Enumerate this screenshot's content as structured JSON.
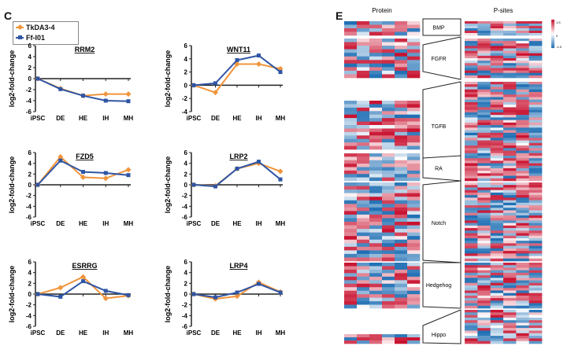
{
  "panels": {
    "c_label": "C",
    "e_label": "E"
  },
  "legend": [
    {
      "name": "TkDA3-4",
      "color": "#f0953b"
    },
    {
      "name": "Ff-I01",
      "color": "#2f55a4"
    }
  ],
  "chart_data": [
    {
      "type": "line",
      "title": "RRM2",
      "x": [
        "iPSC",
        "DE",
        "HE",
        "IH",
        "MH"
      ],
      "ylabel": "log2-fold-change",
      "ylim": [
        -6,
        6
      ],
      "yticks": [
        -6,
        -4,
        -2,
        0,
        2,
        4,
        6
      ],
      "series": [
        {
          "name": "TkDA3-4",
          "values": [
            0,
            -1.8,
            -3.1,
            -2.8,
            -2.8
          ]
        },
        {
          "name": "Ff-I01",
          "values": [
            0,
            -1.9,
            -3.1,
            -4.0,
            -4.1
          ]
        }
      ]
    },
    {
      "type": "line",
      "title": "WNT11",
      "x": [
        "iPSC",
        "DE",
        "HE",
        "IH",
        "MH"
      ],
      "ylabel": "log2-fold-change",
      "ylim": [
        -4,
        6
      ],
      "yticks": [
        -4,
        -2,
        0,
        2,
        4,
        6
      ],
      "series": [
        {
          "name": "TkDA3-4",
          "values": [
            0,
            -1.1,
            3.2,
            3.2,
            2.5
          ]
        },
        {
          "name": "Ff-I01",
          "values": [
            0,
            0.3,
            3.8,
            4.5,
            2.0
          ]
        }
      ]
    },
    {
      "type": "line",
      "title": "FZD5",
      "x": [
        "iPSC",
        "DE",
        "HE",
        "IH",
        "MH"
      ],
      "ylabel": "log2-fold-change",
      "ylim": [
        -6,
        6
      ],
      "yticks": [
        -6,
        -4,
        -2,
        0,
        2,
        4,
        6
      ],
      "series": [
        {
          "name": "TkDA3-4",
          "values": [
            0,
            5.2,
            1.4,
            1.2,
            2.8
          ]
        },
        {
          "name": "Ff-I01",
          "values": [
            0,
            4.5,
            2.4,
            2.2,
            1.8
          ]
        }
      ]
    },
    {
      "type": "line",
      "title": "LRP2",
      "x": [
        "iPSC",
        "DE",
        "HE",
        "IH",
        "MH"
      ],
      "ylabel": "log2-fold-change",
      "ylim": [
        -6,
        6
      ],
      "yticks": [
        -6,
        -4,
        -2,
        0,
        2,
        4,
        6
      ],
      "series": [
        {
          "name": "TkDA3-4",
          "values": [
            0,
            -0.2,
            3.0,
            4.0,
            2.5
          ]
        },
        {
          "name": "Ff-I01",
          "values": [
            0,
            -0.3,
            3.0,
            4.3,
            1.0
          ]
        }
      ]
    },
    {
      "type": "line",
      "title": "ESRRG",
      "x": [
        "iPSC",
        "DE",
        "HE",
        "IH",
        "MH"
      ],
      "ylabel": "log2-fold-change",
      "ylim": [
        -6,
        6
      ],
      "yticks": [
        -6,
        -4,
        -2,
        0,
        2,
        4,
        6
      ],
      "series": [
        {
          "name": "TkDA3-4",
          "values": [
            0,
            1.2,
            3.2,
            -0.8,
            -0.3
          ]
        },
        {
          "name": "Ff-I01",
          "values": [
            0,
            -0.5,
            2.4,
            0.6,
            -0.2
          ]
        }
      ]
    },
    {
      "type": "line",
      "title": "LRP4",
      "x": [
        "iPSC",
        "DE",
        "HE",
        "IH",
        "MH"
      ],
      "ylabel": "log2-fold-change",
      "ylim": [
        -6,
        6
      ],
      "yticks": [
        -6,
        -4,
        -2,
        0,
        2,
        4,
        6
      ],
      "series": [
        {
          "name": "TkDA3-4",
          "values": [
            0,
            -0.9,
            -0.4,
            2.2,
            0.4
          ]
        },
        {
          "name": "Ff-I01",
          "values": [
            0,
            -0.6,
            0.3,
            1.9,
            0.3
          ]
        }
      ]
    }
  ],
  "heatmap": {
    "protein_label": "Protein",
    "psites_label": "P-sites",
    "scale_labels": [
      "1.5",
      "0",
      "-1.5"
    ],
    "colors": {
      "high": "#c8102e",
      "mid": "#ffffff",
      "low": "#1f6fb4"
    },
    "pathways": [
      "BMP",
      "FGFR",
      "TGFB",
      "RA",
      "Notch",
      "Hedgehog",
      "Hippo"
    ]
  }
}
